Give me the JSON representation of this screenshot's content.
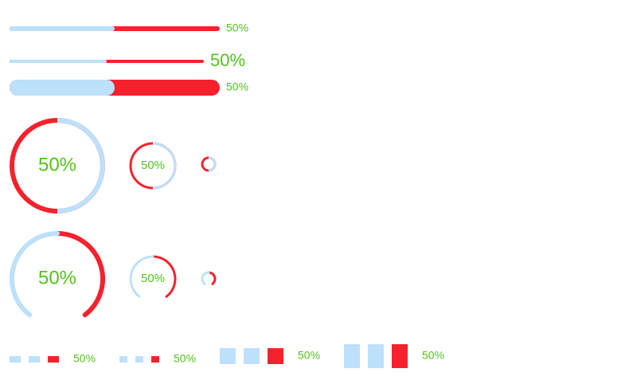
{
  "progress_color": "#bde0fb",
  "trail_color": "#f5222d",
  "label_color": "#52c41a",
  "lines": [
    {
      "percent": 50,
      "label": "50%"
    },
    {
      "percent": 50,
      "label": "50%"
    },
    {
      "percent": 50,
      "label": "50%"
    }
  ],
  "circles": [
    {
      "percent": 50,
      "label": "50%"
    },
    {
      "percent": 50,
      "label": "50%"
    },
    {
      "percent": 50
    }
  ],
  "dashboards": [
    {
      "percent": 50,
      "label": "50%"
    },
    {
      "percent": 50,
      "label": "50%"
    },
    {
      "percent": 50
    }
  ],
  "steps": [
    {
      "percent": 50,
      "steps": 3,
      "label": "50%"
    },
    {
      "percent": 50,
      "steps": 3,
      "label": "50%"
    },
    {
      "percent": 50,
      "steps": 3,
      "label": "50%"
    },
    {
      "percent": 50,
      "steps": 3,
      "label": "50%"
    }
  ]
}
